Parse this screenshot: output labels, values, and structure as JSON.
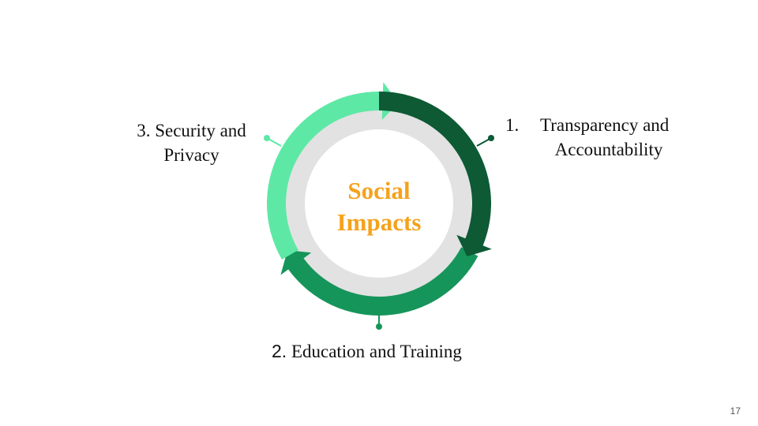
{
  "colors": {
    "accent_text": "#F5A21C",
    "segment_1": "#0D5A35",
    "segment_2": "#16955A",
    "segment_3": "#5EE8A6",
    "inner_ring": "#E2E2E2"
  },
  "center": {
    "line1": "Social",
    "line2": "Impacts"
  },
  "items": [
    {
      "number": "1.",
      "line1": "Transparency and",
      "line2": "Accountability"
    },
    {
      "number": "2.",
      "line1": "Education and Training"
    },
    {
      "number": "3.",
      "line1": "Security and",
      "line2": "Privacy"
    }
  ],
  "page_number": "17"
}
